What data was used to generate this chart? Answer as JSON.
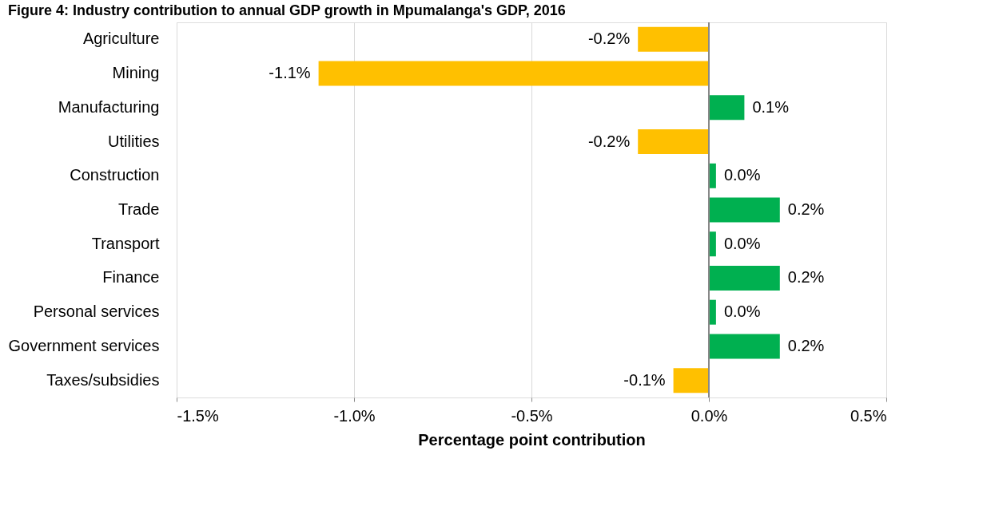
{
  "chart_data": {
    "type": "bar",
    "orientation": "horizontal",
    "title": "Figure 4: Industry contribution to annual GDP growth in Mpumalanga's GDP, 2016",
    "xlabel": "Percentage point contribution",
    "categories": [
      "Agriculture",
      "Mining",
      "Manufacturing",
      "Utilities",
      "Construction",
      "Trade",
      "Transport",
      "Finance",
      "Personal services",
      "Government services",
      "Taxes/subsidies"
    ],
    "values": [
      -0.2,
      -1.1,
      0.1,
      -0.2,
      0.02,
      0.2,
      0.02,
      0.2,
      0.02,
      0.2,
      -0.1
    ],
    "colors": [
      "#ffc000",
      "#ffc000",
      "#00b050",
      "#ffc000",
      "#00b050",
      "#00b050",
      "#00b050",
      "#00b050",
      "#00b050",
      "#00b050",
      "#ffc000"
    ],
    "value_labels": [
      "-0.2%",
      "-1.1%",
      "0.1%",
      "-0.2%",
      "0.0%",
      "0.2%",
      "0.0%",
      "0.2%",
      "0.0%",
      "0.2%",
      "-0.1%"
    ],
    "xlim": [
      -1.5,
      0.5
    ],
    "xticks": [
      {
        "value": -1.5,
        "label": "-1.5%"
      },
      {
        "value": -1.0,
        "label": "-1.0%"
      },
      {
        "value": -0.5,
        "label": "-0.5%"
      },
      {
        "value": 0.0,
        "label": "0.0%"
      },
      {
        "value": 0.5,
        "label": "0.5%"
      }
    ],
    "grid": "x"
  }
}
